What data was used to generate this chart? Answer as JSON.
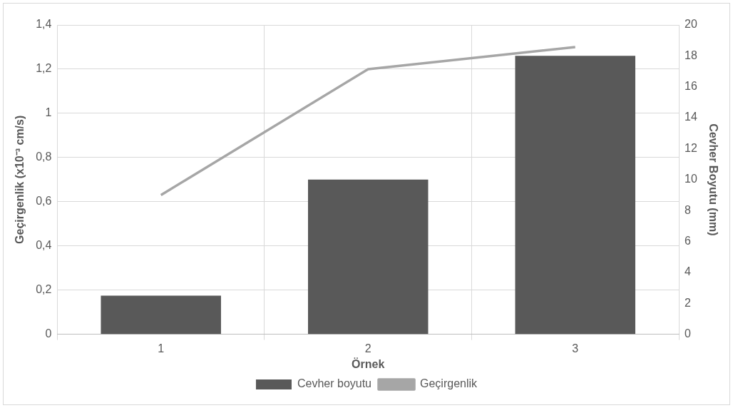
{
  "chart_data": {
    "type": "bar",
    "xlabel": "Örnek",
    "ylabel": "Geçirgenlik (x10⁻³ cm/s)",
    "y2label": "Cevher Boyutu (mm)",
    "categories": [
      "1",
      "2",
      "3"
    ],
    "series": [
      {
        "name": "Cevher boyutu",
        "axis": "y2",
        "color": "#595959",
        "values": [
          2.5,
          10,
          18
        ]
      },
      {
        "name": "Geçirgenlik",
        "type": "line",
        "axis": "y",
        "color": "#a6a6a6",
        "values": [
          0.63,
          1.2,
          1.3
        ],
        "marker": "none"
      }
    ],
    "ylim": [
      0,
      1.4
    ],
    "yticks": [
      0,
      {
        "value": 0.2,
        "label": "0,2"
      },
      {
        "value": 0.4,
        "label": "0,4"
      },
      {
        "value": 0.6,
        "label": "0,6"
      },
      {
        "value": 0.8,
        "label": "0,8"
      },
      1,
      {
        "value": 1.2,
        "label": "1,2"
      },
      {
        "value": 1.4,
        "label": "1,4"
      }
    ],
    "y2lim": [
      0,
      20
    ],
    "y2ticks": [
      0,
      2,
      4,
      6,
      8,
      10,
      12,
      14,
      16,
      18,
      20
    ],
    "grid": true,
    "legend": "bottom"
  }
}
